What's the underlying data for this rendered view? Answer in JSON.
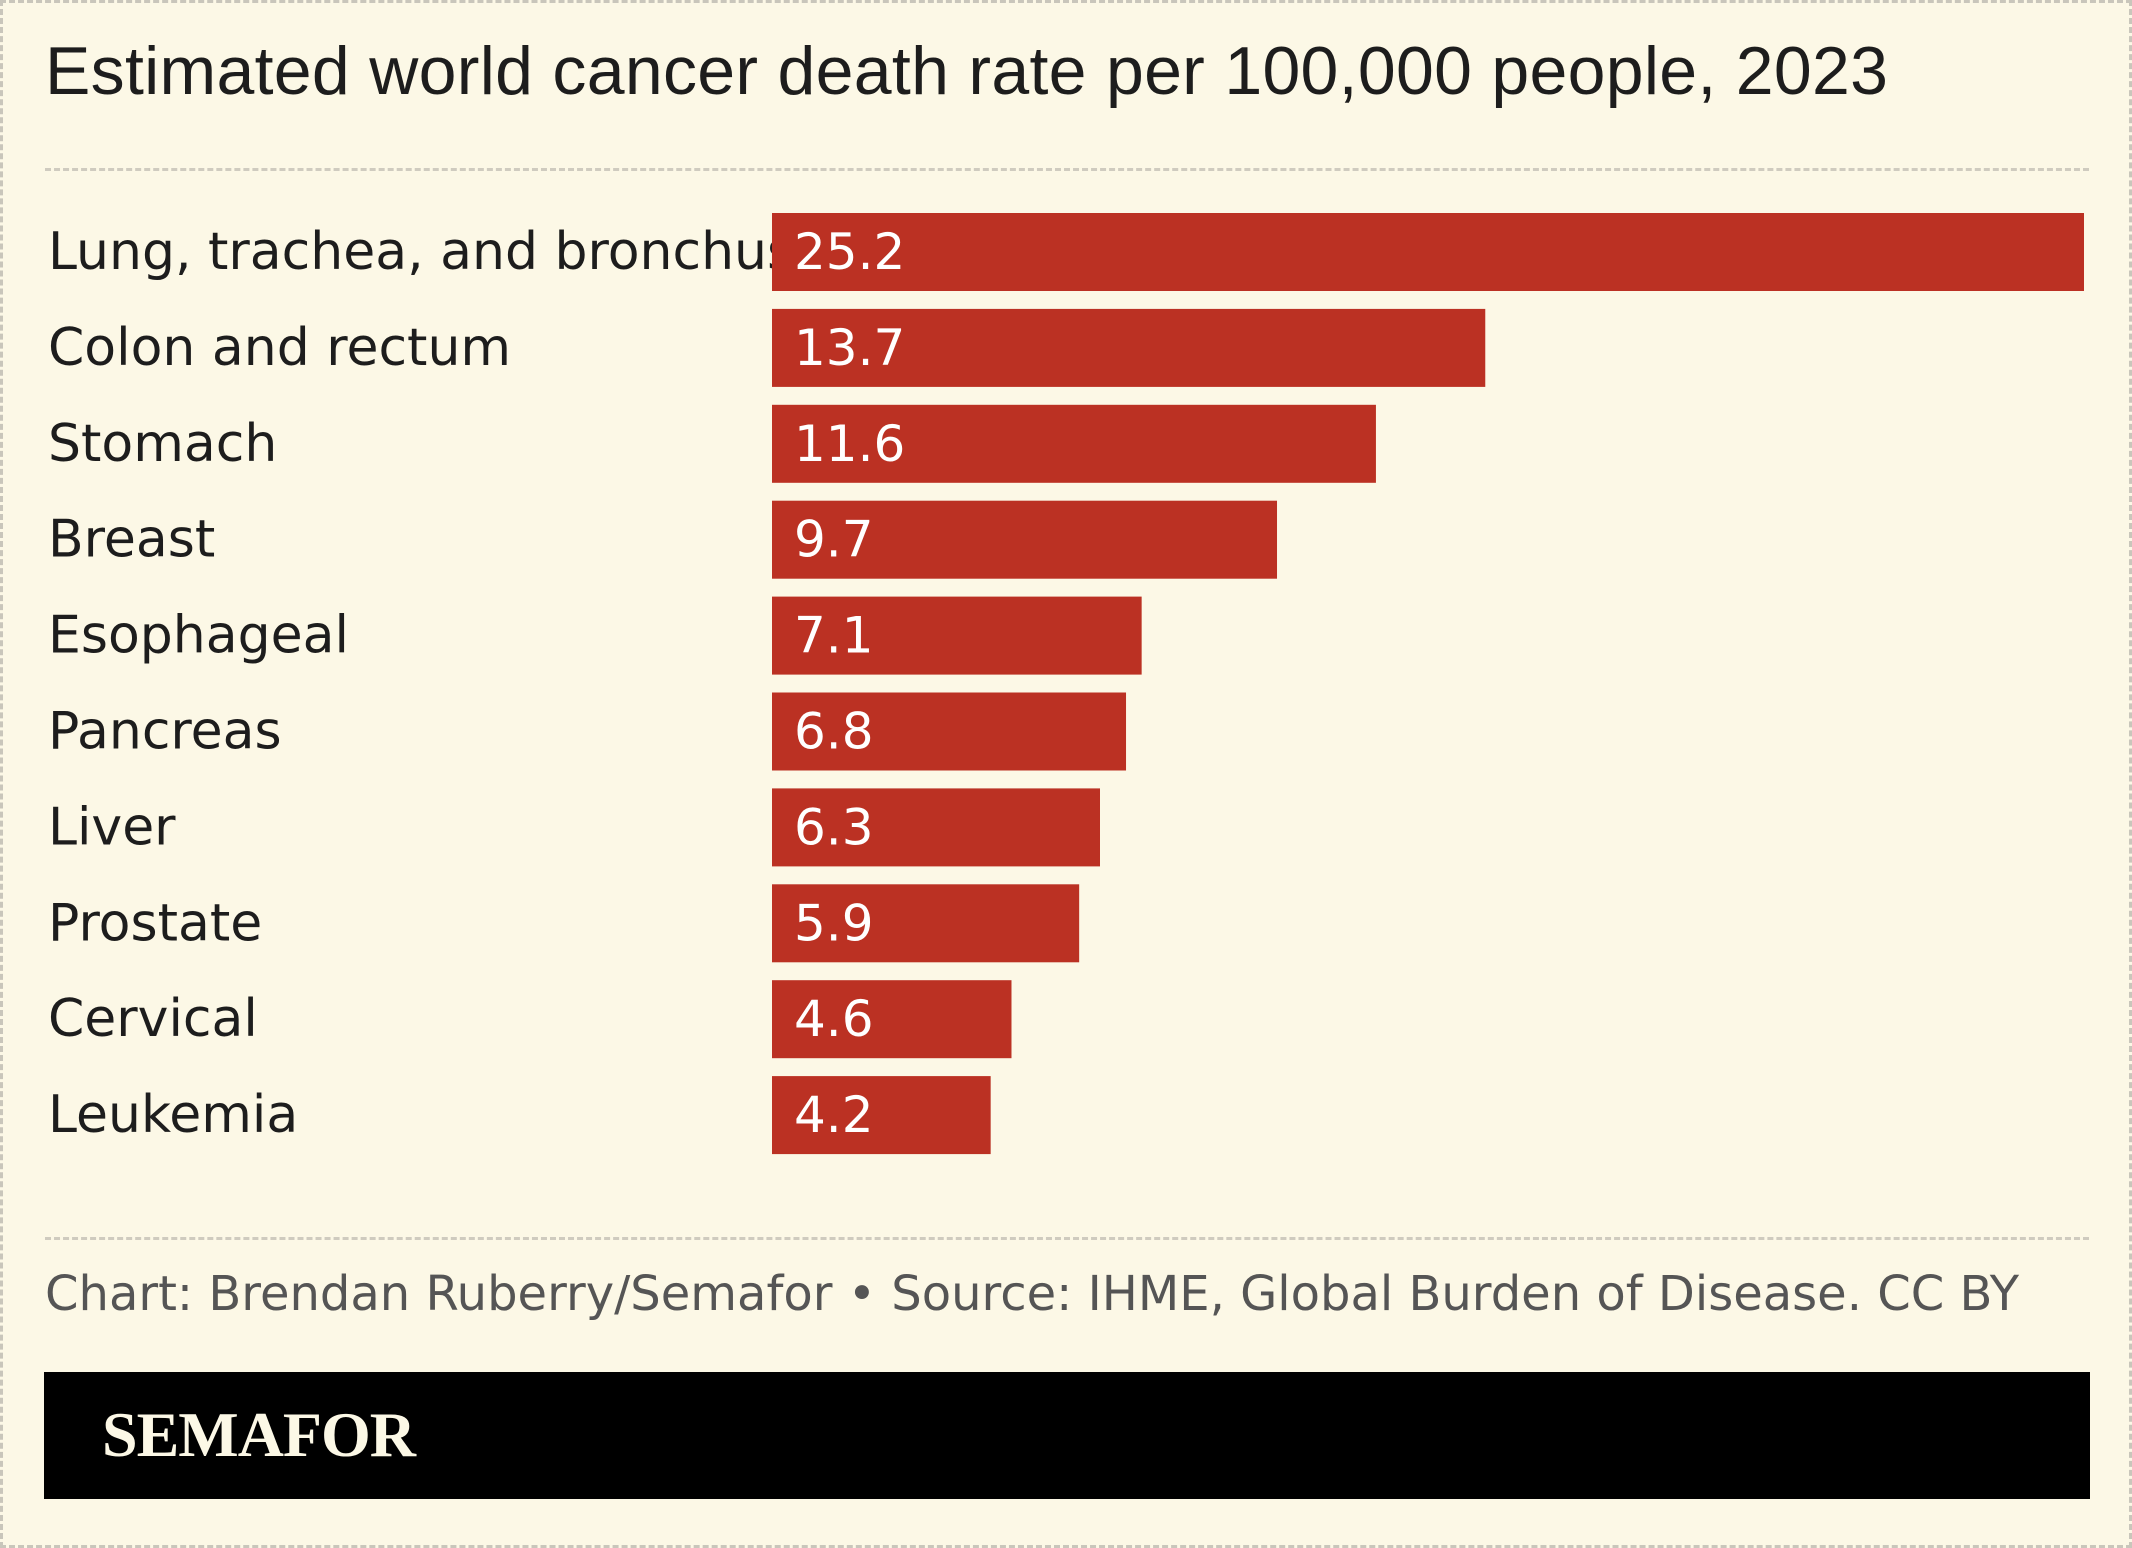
{
  "chart_data": {
    "type": "bar",
    "orientation": "horizontal",
    "title": "Estimated world cancer death rate per 100,000 people, 2023",
    "categories": [
      "Lung, trachea, and bronchus",
      "Colon and rectum",
      "Stomach",
      "Breast",
      "Esophageal",
      "Pancreas",
      "Liver",
      "Prostate",
      "Cervical",
      "Leukemia"
    ],
    "values": [
      25.2,
      13.7,
      11.6,
      9.7,
      7.1,
      6.8,
      6.3,
      5.9,
      4.6,
      4.2
    ],
    "value_labels": [
      "25.2",
      "13.7",
      "11.6",
      "9.7",
      "7.1",
      "6.8",
      "6.3",
      "5.9",
      "4.6",
      "4.2"
    ],
    "bar_color": "#bb3123",
    "xlim": [
      0,
      25.2
    ],
    "grid": false,
    "legend": "none"
  },
  "source": "Chart: Brendan Ruberry/Semafor • Source: IHME, Global Burden of Disease. CC BY",
  "brand": {
    "name": "SEMAFOR"
  },
  "colors": {
    "background": "#fcf8e6",
    "bar": "#bb3123",
    "brand_bar": "#000000"
  }
}
